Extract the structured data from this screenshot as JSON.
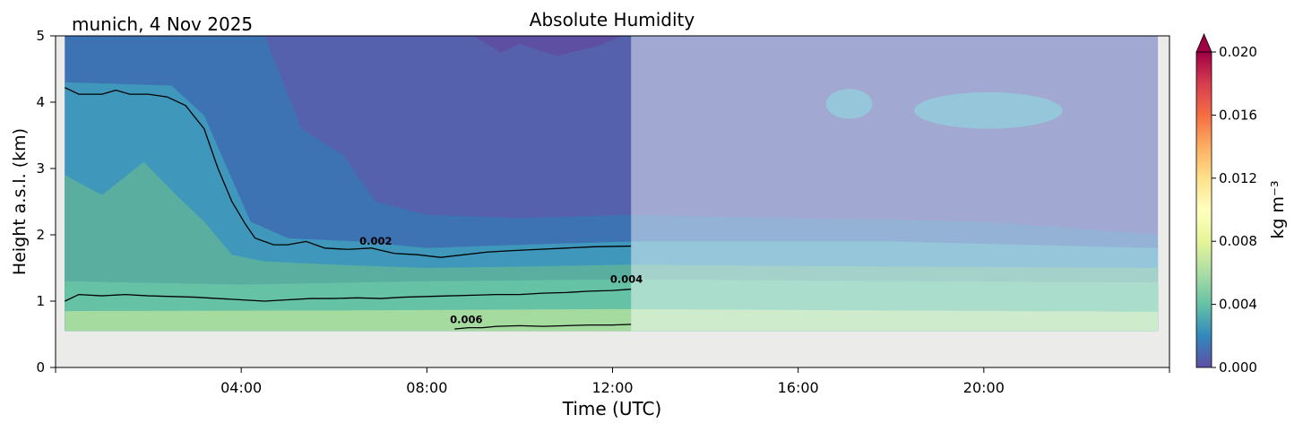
{
  "chart_data": {
    "type": "heatmap",
    "title": "Absolute Humidity",
    "location_label": "munich, 4 Nov 2025",
    "xlabel": "Time (UTC)",
    "ylabel": "Height a.s.l. (km)",
    "x_range_hours": [
      0,
      24
    ],
    "y_range_km": [
      0,
      5
    ],
    "x_ticks": [
      {
        "hour": 0,
        "label": ""
      },
      {
        "hour": 4,
        "label": "04:00"
      },
      {
        "hour": 8,
        "label": "08:00"
      },
      {
        "hour": 12,
        "label": "12:00"
      },
      {
        "hour": 16,
        "label": "16:00"
      },
      {
        "hour": 20,
        "label": "20:00"
      },
      {
        "hour": 24,
        "label": ""
      }
    ],
    "y_ticks": [
      {
        "km": 0,
        "label": "0"
      },
      {
        "km": 1,
        "label": "1"
      },
      {
        "km": 2,
        "label": "2"
      },
      {
        "km": 3,
        "label": "3"
      },
      {
        "km": 4,
        "label": "4"
      },
      {
        "km": 5,
        "label": "5"
      }
    ],
    "data_start_hour": 0.2,
    "data_end_hour": 23.75,
    "shaded_from_hour": 12.4,
    "lowest_height_km": 0.55,
    "colorbar": {
      "label": "kg m⁻³",
      "range": [
        0.0,
        0.02
      ],
      "extend": "max",
      "ticks": [
        {
          "value": 0.0,
          "label": "0.000"
        },
        {
          "value": 0.004,
          "label": "0.004"
        },
        {
          "value": 0.008,
          "label": "0.008"
        },
        {
          "value": 0.012,
          "label": "0.012"
        },
        {
          "value": 0.016,
          "label": "0.016"
        },
        {
          "value": 0.02,
          "label": "0.020"
        }
      ]
    },
    "contour_labels": [
      {
        "text": "0.002",
        "hour": 6.9,
        "km": 1.85
      },
      {
        "text": "0.004",
        "hour": 12.3,
        "km": 1.28
      },
      {
        "text": "0.006",
        "hour": 8.85,
        "km": 0.67
      }
    ],
    "contour_0002_km": [
      [
        0.2,
        4.22
      ],
      [
        0.5,
        4.12
      ],
      [
        1.0,
        4.12
      ],
      [
        1.3,
        4.18
      ],
      [
        1.6,
        4.12
      ],
      [
        2.0,
        4.12
      ],
      [
        2.4,
        4.08
      ],
      [
        2.8,
        3.95
      ],
      [
        3.2,
        3.6
      ],
      [
        3.5,
        3.0
      ],
      [
        3.8,
        2.5
      ],
      [
        4.1,
        2.15
      ],
      [
        4.3,
        1.95
      ],
      [
        4.7,
        1.85
      ],
      [
        5.0,
        1.85
      ],
      [
        5.4,
        1.9
      ],
      [
        5.8,
        1.8
      ],
      [
        6.3,
        1.78
      ],
      [
        6.8,
        1.8
      ],
      [
        7.3,
        1.72
      ],
      [
        7.8,
        1.7
      ],
      [
        8.3,
        1.66
      ],
      [
        8.8,
        1.7
      ],
      [
        9.3,
        1.74
      ],
      [
        9.8,
        1.76
      ],
      [
        10.4,
        1.78
      ],
      [
        11.0,
        1.8
      ],
      [
        11.6,
        1.82
      ],
      [
        12.4,
        1.83
      ]
    ],
    "contour_0004_km": [
      [
        0.2,
        1.0
      ],
      [
        0.5,
        1.1
      ],
      [
        1.0,
        1.08
      ],
      [
        1.5,
        1.1
      ],
      [
        2.0,
        1.08
      ],
      [
        2.5,
        1.07
      ],
      [
        3.0,
        1.06
      ],
      [
        3.5,
        1.04
      ],
      [
        4.0,
        1.02
      ],
      [
        4.5,
        1.0
      ],
      [
        5.0,
        1.02
      ],
      [
        5.5,
        1.04
      ],
      [
        6.0,
        1.04
      ],
      [
        6.5,
        1.05
      ],
      [
        7.0,
        1.04
      ],
      [
        7.5,
        1.06
      ],
      [
        8.0,
        1.07
      ],
      [
        8.5,
        1.08
      ],
      [
        9.0,
        1.09
      ],
      [
        9.5,
        1.1
      ],
      [
        10.0,
        1.1
      ],
      [
        10.5,
        1.12
      ],
      [
        11.0,
        1.13
      ],
      [
        11.5,
        1.15
      ],
      [
        12.0,
        1.16
      ],
      [
        12.4,
        1.18
      ]
    ],
    "contour_0006_km": [
      [
        8.6,
        0.58
      ],
      [
        8.9,
        0.6
      ],
      [
        9.2,
        0.6
      ],
      [
        9.5,
        0.62
      ],
      [
        10.0,
        0.63
      ],
      [
        10.5,
        0.62
      ],
      [
        11.0,
        0.63
      ],
      [
        11.5,
        0.64
      ],
      [
        12.0,
        0.64
      ],
      [
        12.4,
        0.65
      ]
    ],
    "humidity_bands": [
      {
        "color": "#a6dba0",
        "top_km": [
          [
            0.2,
            0.85
          ],
          [
            6,
            0.86
          ],
          [
            12,
            0.88
          ],
          [
            18,
            0.86
          ],
          [
            23.75,
            0.84
          ]
        ]
      },
      {
        "color": "#66c2a5",
        "top_km": [
          [
            0.2,
            1.3
          ],
          [
            4,
            1.25
          ],
          [
            8,
            1.3
          ],
          [
            12.4,
            1.33
          ],
          [
            18,
            1.3
          ],
          [
            23.75,
            1.28
          ]
        ]
      },
      {
        "color": "#5aae9f",
        "top_km": [
          [
            0.2,
            2.9
          ],
          [
            1.0,
            2.6
          ],
          [
            1.9,
            3.1
          ],
          [
            2.6,
            2.6
          ],
          [
            3.2,
            2.2
          ],
          [
            3.8,
            1.7
          ],
          [
            4.5,
            1.6
          ],
          [
            6,
            1.55
          ],
          [
            8,
            1.5
          ],
          [
            10,
            1.52
          ],
          [
            12.4,
            1.55
          ],
          [
            18,
            1.52
          ],
          [
            23.75,
            1.5
          ]
        ]
      },
      {
        "color": "#3f97bc",
        "top_km": [
          [
            0.2,
            4.3
          ],
          [
            2.5,
            4.25
          ],
          [
            3.2,
            3.8
          ],
          [
            3.7,
            3.0
          ],
          [
            4.2,
            2.2
          ],
          [
            5.0,
            1.95
          ],
          [
            6.5,
            1.9
          ],
          [
            8,
            1.8
          ],
          [
            10,
            1.85
          ],
          [
            12.4,
            1.9
          ],
          [
            18,
            1.9
          ],
          [
            23.75,
            1.8
          ]
        ]
      },
      {
        "color": "#3d73b3",
        "top_km": [
          [
            0.2,
            5
          ],
          [
            4.5,
            5
          ],
          [
            5.3,
            3.6
          ],
          [
            6.2,
            3.2
          ],
          [
            6.9,
            2.5
          ],
          [
            8,
            2.3
          ],
          [
            10,
            2.25
          ],
          [
            12.4,
            2.3
          ],
          [
            16,
            2.25
          ],
          [
            20,
            2.2
          ],
          [
            23.75,
            2.0
          ]
        ]
      },
      {
        "color": "#5561ac",
        "top_km": [
          [
            0.2,
            5
          ],
          [
            23.75,
            5
          ]
        ]
      }
    ],
    "grid": false,
    "legend": "colorbar-right"
  }
}
